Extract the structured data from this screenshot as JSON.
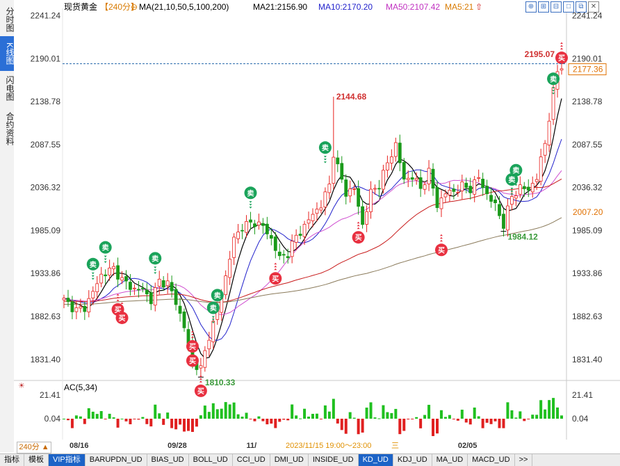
{
  "sidebar": {
    "tabs": [
      {
        "label": "分时图",
        "active": false
      },
      {
        "label": "K线图",
        "active": true
      },
      {
        "label": "闪电图",
        "active": false
      },
      {
        "label": "合约资料",
        "active": false
      }
    ]
  },
  "header": {
    "instrument": "现货黄金",
    "period": "【240分】",
    "ma_params": "MA(21,10,50,5,100,200)",
    "ma21": "MA21:2156.90",
    "ma10": "MA10:2170.20",
    "ma50": "MA50:2107.42",
    "ma5": "MA5:21"
  },
  "colors": {
    "up": "#e8201d",
    "down": "#1a9a1a",
    "ma5": "#000000",
    "ma10": "#2222cc",
    "ma21": "#d050d0",
    "ma50": "#c81a1a",
    "ma100": "#8a7a5a",
    "current": "#e07000",
    "sell": "#1aa35a",
    "buy": "#e83040",
    "grid": "#d8d8d8"
  },
  "chart_data": {
    "type": "line",
    "title": "现货黄金【240分】",
    "y_ticks": [
      "2241.24",
      "2190.01",
      "2138.78",
      "2087.55",
      "2036.32",
      "1985.09",
      "1933.86",
      "1882.63",
      "1831.40"
    ],
    "ylim": [
      1808,
      2250
    ],
    "x_labels": [
      "08/16",
      "09/28",
      "11/",
      "02/05"
    ],
    "x_positions": [
      0,
      25,
      44,
      95
    ],
    "x_count": 115,
    "price_anchors": [
      [
        0,
        1902
      ],
      [
        3,
        1890
      ],
      [
        5,
        1893
      ],
      [
        7,
        1912
      ],
      [
        9,
        1932
      ],
      [
        12,
        1940
      ],
      [
        14,
        1926
      ],
      [
        17,
        1915
      ],
      [
        19,
        1915
      ],
      [
        21,
        1902
      ],
      [
        23,
        1925
      ],
      [
        25,
        1922
      ],
      [
        27,
        1900
      ],
      [
        29,
        1870
      ],
      [
        31,
        1828
      ],
      [
        33,
        1820
      ],
      [
        35,
        1860
      ],
      [
        37,
        1888
      ],
      [
        39,
        1930
      ],
      [
        41,
        1975
      ],
      [
        43,
        1990
      ],
      [
        46,
        1995
      ],
      [
        48,
        1990
      ],
      [
        50,
        1975
      ],
      [
        52,
        1952
      ],
      [
        54,
        1958
      ],
      [
        56,
        1978
      ],
      [
        58,
        1990
      ],
      [
        60,
        2005
      ],
      [
        62,
        2015
      ],
      [
        64,
        2040
      ],
      [
        65,
        2078
      ],
      [
        66,
        2060
      ],
      [
        68,
        2030
      ],
      [
        70,
        2035
      ],
      [
        72,
        1992
      ],
      [
        74,
        2030
      ],
      [
        76,
        2040
      ],
      [
        78,
        2065
      ],
      [
        80,
        2088
      ],
      [
        82,
        2045
      ],
      [
        84,
        2050
      ],
      [
        86,
        2035
      ],
      [
        88,
        2055
      ],
      [
        90,
        2015
      ],
      [
        92,
        2030
      ],
      [
        94,
        2032
      ],
      [
        96,
        2038
      ],
      [
        98,
        2035
      ],
      [
        100,
        2048
      ],
      [
        102,
        2028
      ],
      [
        104,
        2015
      ],
      [
        106,
        1992
      ],
      [
        108,
        2026
      ],
      [
        110,
        2036
      ],
      [
        112,
        2034
      ],
      [
        114,
        2048
      ],
      [
        116,
        2090
      ],
      [
        118,
        2150
      ],
      [
        119,
        2175
      ],
      [
        120,
        2182
      ]
    ],
    "series": [
      {
        "name": "MA5",
        "period": 5
      },
      {
        "name": "MA10",
        "period": 10
      },
      {
        "name": "MA21",
        "period": 21
      },
      {
        "name": "MA50",
        "period": 50
      },
      {
        "name": "MA100",
        "period": 100
      }
    ],
    "annotations": [
      {
        "text": "2144.68",
        "x": 65,
        "y": 2144.68,
        "kind": "high"
      },
      {
        "text": "2195.07",
        "x": 119,
        "y": 2195.07,
        "kind": "high"
      },
      {
        "text": "1810.33",
        "x": 33,
        "y": 1810.33,
        "kind": "low"
      },
      {
        "text": "1984.12",
        "x": 106,
        "y": 1984.12,
        "kind": "low"
      }
    ],
    "current_price": "2177.36",
    "ref_price": "2007.20",
    "signals": [
      {
        "type": "sell",
        "x": 7,
        "y": 1945
      },
      {
        "type": "sell",
        "x": 10,
        "y": 1965
      },
      {
        "type": "sell",
        "x": 22,
        "y": 1952
      },
      {
        "type": "sell",
        "x": 37,
        "y": 1908
      },
      {
        "type": "sell",
        "x": 36,
        "y": 1893
      },
      {
        "type": "sell",
        "x": 45,
        "y": 2030
      },
      {
        "type": "sell",
        "x": 63,
        "y": 2084
      },
      {
        "type": "sell",
        "x": 108,
        "y": 2046
      },
      {
        "type": "sell",
        "x": 109,
        "y": 2057
      },
      {
        "type": "sell",
        "x": 118,
        "y": 2166
      },
      {
        "type": "buy",
        "x": 13,
        "y": 1891
      },
      {
        "type": "buy",
        "x": 14,
        "y": 1881
      },
      {
        "type": "buy",
        "x": 31,
        "y": 1847
      },
      {
        "type": "buy",
        "x": 31,
        "y": 1830
      },
      {
        "type": "buy",
        "x": 33,
        "y": 1794
      },
      {
        "type": "buy",
        "x": 51,
        "y": 1928
      },
      {
        "type": "buy",
        "x": 71,
        "y": 1977
      },
      {
        "type": "buy",
        "x": 91,
        "y": 1962
      },
      {
        "type": "buy",
        "x": 120,
        "y": 2191
      }
    ],
    "signal_labels": {
      "sell": "卖",
      "buy": "买"
    },
    "ac": {
      "title": "AC(5,34)",
      "ticks": [
        "21.41",
        "0.04"
      ],
      "ylim": [
        -30,
        30
      ]
    }
  },
  "bottom": {
    "period_label": "240分 ▲",
    "timestamp": "2023/11/15 19:00～23:00",
    "tabs": [
      "指标",
      "模板",
      "VIP指标",
      "BARUPDN_UD",
      "BIAS_UD",
      "BOLL_UD",
      "CCI_UD",
      "DMI_UD",
      "INSIDE_UD",
      "KD_UD",
      "KDJ_UD",
      "MA_UD",
      "MACD_UD",
      ">>"
    ],
    "active_tab": "KD_UD"
  },
  "toolbar": {
    "icons": [
      "crosshair-icon",
      "zoom-in-icon",
      "zoom-out-icon",
      "square-icon",
      "restore-icon",
      "close-icon"
    ],
    "symbols": [
      "⊕",
      "⊞",
      "⊟",
      "□",
      "⧉",
      "✕"
    ]
  }
}
